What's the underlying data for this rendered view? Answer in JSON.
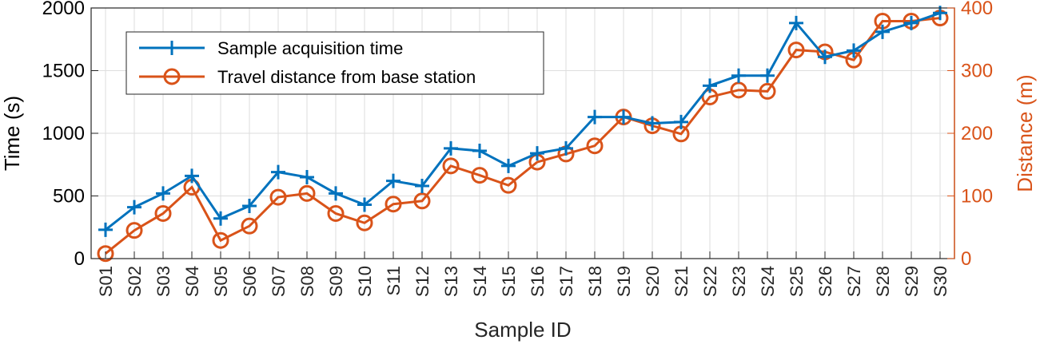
{
  "chart_data": {
    "type": "line",
    "xlabel": "Sample ID",
    "ylabel_left": "Time (s)",
    "ylabel_right": "Distance (m)",
    "ylim_left": [
      0,
      2000
    ],
    "ylim_right": [
      0,
      400
    ],
    "yticks_left": [
      0,
      500,
      1000,
      1500,
      2000
    ],
    "yticks_right": [
      0,
      100,
      200,
      300,
      400
    ],
    "grid": true,
    "legend_position": "top-left",
    "colors": {
      "time": "#0072BD",
      "distance": "#D95319"
    },
    "categories": [
      "S01",
      "S02",
      "S03",
      "S04",
      "S05",
      "S06",
      "S07",
      "S08",
      "S09",
      "S10",
      "S11",
      "S12",
      "S13",
      "S14",
      "S15",
      "S16",
      "S17",
      "S18",
      "S19",
      "S20",
      "S21",
      "S22",
      "S23",
      "S24",
      "S25",
      "S26",
      "S27",
      "S28",
      "S29",
      "S30"
    ],
    "series": [
      {
        "name": "Sample acquisition time",
        "axis": "left",
        "marker": "plus",
        "values": [
          230,
          410,
          520,
          660,
          320,
          420,
          690,
          650,
          520,
          430,
          620,
          580,
          880,
          860,
          740,
          840,
          880,
          1130,
          1130,
          1080,
          1090,
          1380,
          1460,
          1460,
          1880,
          1610,
          1660,
          1810,
          1880,
          1960
        ]
      },
      {
        "name": "Travel distance from base station",
        "axis": "right",
        "marker": "circle",
        "values": [
          8,
          45,
          72,
          114,
          29,
          52,
          98,
          104,
          72,
          57,
          87,
          92,
          148,
          133,
          117,
          154,
          167,
          180,
          226,
          212,
          199,
          258,
          269,
          267,
          333,
          330,
          317,
          379,
          379,
          384
        ]
      }
    ]
  }
}
